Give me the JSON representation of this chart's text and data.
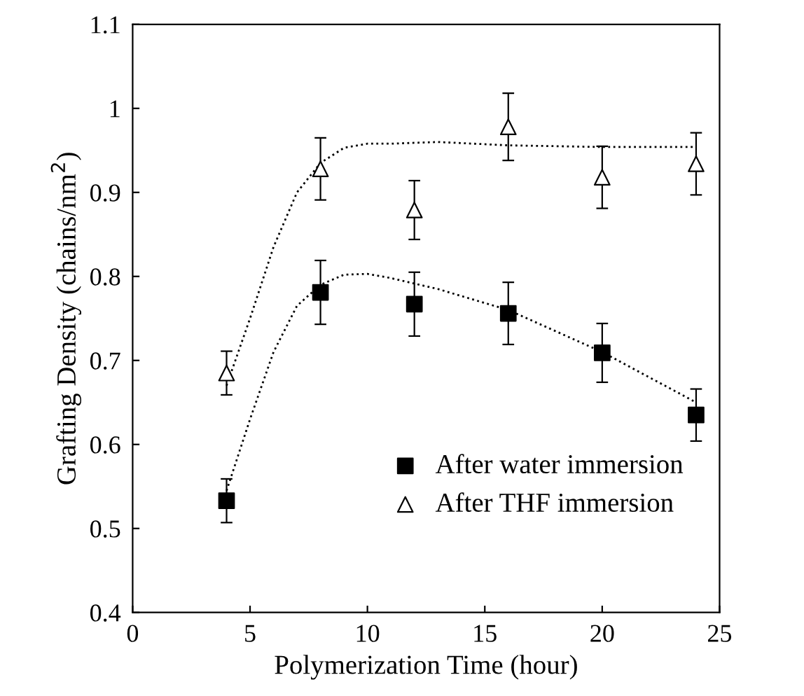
{
  "chart_data": {
    "type": "scatter",
    "xlabel": "Polymerization Time (hour)",
    "ylabel": "Grafting Density (chains/nm$^{2}$)",
    "xlim": [
      0,
      25
    ],
    "xticks": [
      0,
      5,
      10,
      15,
      20,
      25
    ],
    "ylim": [
      0.4,
      1.1
    ],
    "yticks": [
      0.4,
      0.5,
      0.6,
      0.7,
      0.8,
      0.9,
      1,
      1.1
    ],
    "grid": false,
    "legend": "bottom right",
    "series": [
      {
        "name": "After water immersion",
        "color": "#000000",
        "marker": "square",
        "x": [
          4,
          8,
          12,
          16,
          20,
          24
        ],
        "values": [
          0.533,
          0.781,
          0.767,
          0.756,
          0.709,
          0.635
        ],
        "errors": [
          0.026,
          0.038,
          0.038,
          0.037,
          0.035,
          0.031
        ]
      },
      {
        "name": "After THF immersion",
        "color": "#000000",
        "marker": "triangle",
        "x": [
          4,
          8,
          12,
          16,
          20,
          24
        ],
        "values": [
          0.685,
          0.928,
          0.879,
          0.978,
          0.918,
          0.934
        ],
        "errors": [
          0.026,
          0.037,
          0.035,
          0.04,
          0.037,
          0.037
        ]
      },
      {
        "type": "line",
        "color": "#000000",
        "line_style": "dotted",
        "marker": "none",
        "x": [
          4,
          5,
          6,
          7,
          8,
          9,
          10,
          11,
          13,
          16,
          20,
          24
        ],
        "values": [
          0.545,
          0.63,
          0.71,
          0.765,
          0.79,
          0.802,
          0.803,
          0.798,
          0.785,
          0.76,
          0.71,
          0.65
        ]
      },
      {
        "type": "line",
        "color": "#000000",
        "line_style": "dotted",
        "marker": "none",
        "x": [
          4,
          5,
          6,
          7,
          8,
          9,
          10,
          11,
          13,
          16,
          20,
          24
        ],
        "values": [
          0.67,
          0.75,
          0.835,
          0.9,
          0.935,
          0.953,
          0.958,
          0.958,
          0.96,
          0.956,
          0.954,
          0.954
        ]
      }
    ]
  }
}
